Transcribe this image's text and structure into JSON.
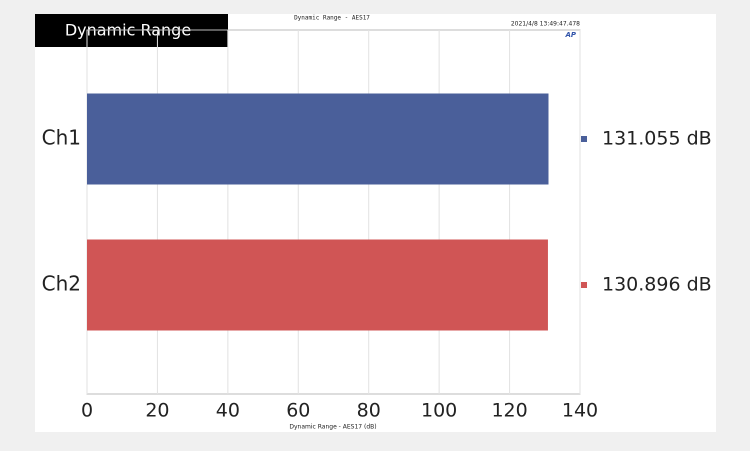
{
  "chart_data": {
    "type": "hbar",
    "badge": "Dynamic Range",
    "title": "Dynamic Range - AES17",
    "timestamp": "2021/4/8 13:49:47.478",
    "logo": "AP",
    "xlabel": "Dynamic Range - AES17 (dB)",
    "categories": [
      "Ch1",
      "Ch2"
    ],
    "values": [
      131.055,
      130.896
    ],
    "value_labels": [
      "131.055 dB",
      "130.896 dB"
    ],
    "colors": [
      "#4a5f9a",
      "#d05555"
    ],
    "xlim": [
      0,
      140
    ],
    "xticks": [
      0,
      20,
      40,
      60,
      80,
      100,
      120,
      140
    ],
    "grid": true
  }
}
